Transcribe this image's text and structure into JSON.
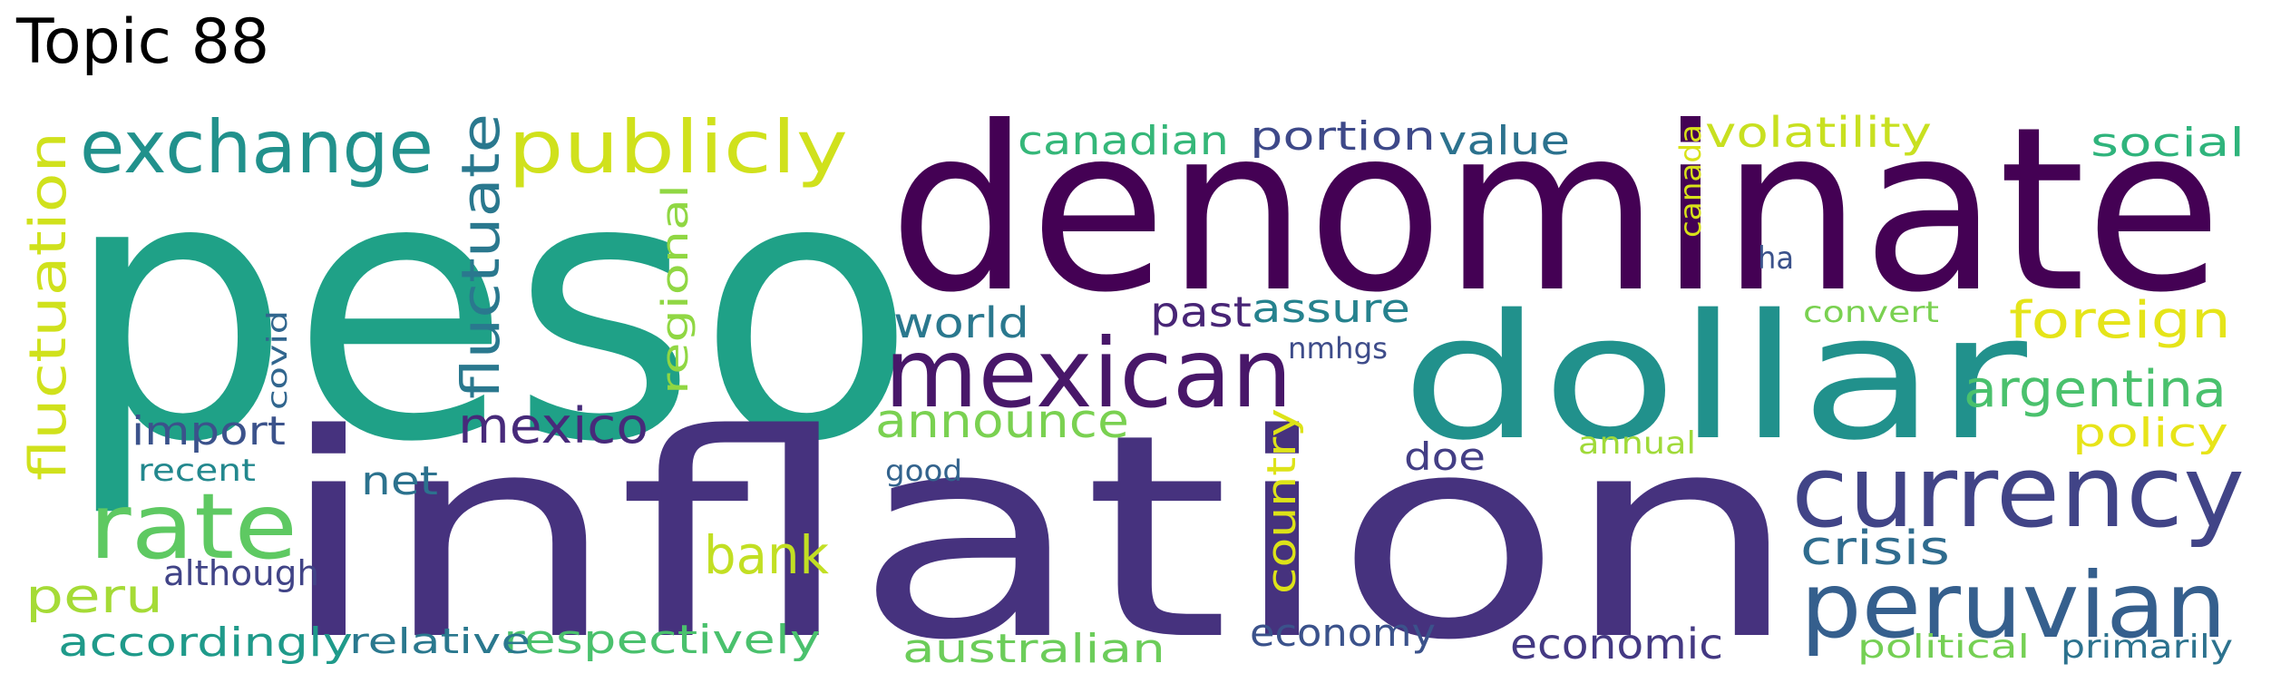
{
  "title": "Topic 88",
  "colors": {
    "dark_purple": "#440154",
    "indigo": "#472d7b",
    "slate_blue": "#3b528b",
    "steel_blue": "#2c728e",
    "teal": "#21918c",
    "sea_green": "#28ae80",
    "green": "#5ec962",
    "lime": "#addc30",
    "yellow": "#d6e21a"
  },
  "words": [
    {
      "text": "peso",
      "color": "#1fa187"
    },
    {
      "text": "denominate",
      "color": "#440154"
    },
    {
      "text": "inflation",
      "color": "#46327e"
    },
    {
      "text": "dollar",
      "color": "#21918c"
    },
    {
      "text": "mexican",
      "color": "#481769"
    },
    {
      "text": "currency",
      "color": "#414487"
    },
    {
      "text": "peruvian",
      "color": "#355f8d"
    },
    {
      "text": "exchange",
      "color": "#21918c"
    },
    {
      "text": "publicly",
      "color": "#d0e11c"
    },
    {
      "text": "rate",
      "color": "#5ec962"
    },
    {
      "text": "fluctuation",
      "color": "#d0e11c"
    },
    {
      "text": "fluctuate",
      "color": "#2a788e"
    },
    {
      "text": "mexico",
      "color": "#472a7a"
    },
    {
      "text": "import",
      "color": "#3b528b"
    },
    {
      "text": "bank",
      "color": "#c2df23"
    },
    {
      "text": "peru",
      "color": "#a5db36"
    },
    {
      "text": "accordingly",
      "color": "#1f9a8a"
    },
    {
      "text": "respectively",
      "color": "#4ac16d"
    },
    {
      "text": "relative",
      "color": "#2a788e"
    },
    {
      "text": "although",
      "color": "#414487"
    },
    {
      "text": "net",
      "color": "#2c728e"
    },
    {
      "text": "recent",
      "color": "#23888e"
    },
    {
      "text": "covid",
      "color": "#31668e"
    },
    {
      "text": "regional",
      "color": "#90d743"
    },
    {
      "text": "canadian",
      "color": "#35b779"
    },
    {
      "text": "portion",
      "color": "#3e4989"
    },
    {
      "text": "value",
      "color": "#2c728e"
    },
    {
      "text": "volatility",
      "color": "#c8e020"
    },
    {
      "text": "social",
      "color": "#2fb47c"
    },
    {
      "text": "canada",
      "color": "#d8e219"
    },
    {
      "text": "ha",
      "color": "#3b528b"
    },
    {
      "text": "world",
      "color": "#2a788e"
    },
    {
      "text": "past",
      "color": "#482576"
    },
    {
      "text": "assure",
      "color": "#26828e"
    },
    {
      "text": "nmhgs",
      "color": "#3e4c8a"
    },
    {
      "text": "convert",
      "color": "#7ad151"
    },
    {
      "text": "foreign",
      "color": "#e5e419"
    },
    {
      "text": "argentina",
      "color": "#4ac16d"
    },
    {
      "text": "policy",
      "color": "#e7e419"
    },
    {
      "text": "announce",
      "color": "#7ad151"
    },
    {
      "text": "country",
      "color": "#dde318"
    },
    {
      "text": "good",
      "color": "#33638d"
    },
    {
      "text": "doe",
      "color": "#433e85"
    },
    {
      "text": "annual",
      "color": "#a0da39"
    },
    {
      "text": "crisis",
      "color": "#2f6c8e"
    },
    {
      "text": "economy",
      "color": "#3b528b"
    },
    {
      "text": "economic",
      "color": "#443983"
    },
    {
      "text": "australian",
      "color": "#6ccd5a"
    },
    {
      "text": "political",
      "color": "#75d054"
    },
    {
      "text": "primarily",
      "color": "#2c728e"
    }
  ]
}
